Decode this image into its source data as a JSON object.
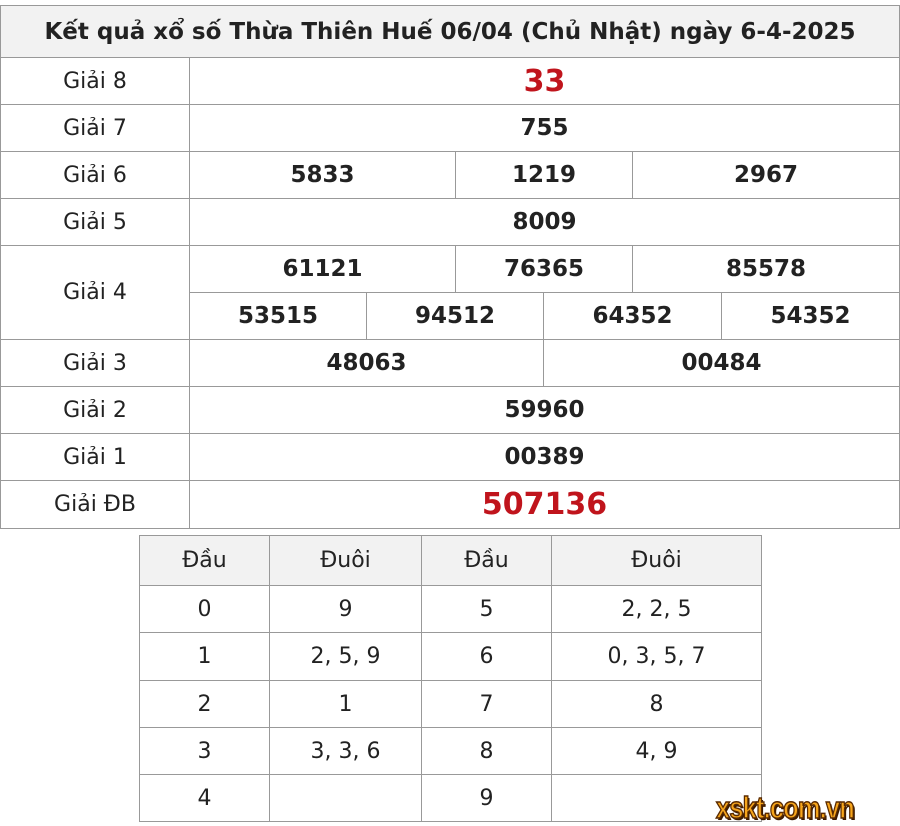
{
  "title": "Kết quả xổ số Thừa Thiên Huế 06/04 (Chủ Nhật) ngày 6-4-2025",
  "prizes": {
    "g8": {
      "label": "Giải 8",
      "numbers": [
        "33"
      ]
    },
    "g7": {
      "label": "Giải 7",
      "numbers": [
        "755"
      ]
    },
    "g6": {
      "label": "Giải 6",
      "numbers": [
        "5833",
        "1219",
        "2967"
      ]
    },
    "g5": {
      "label": "Giải 5",
      "numbers": [
        "8009"
      ]
    },
    "g4": {
      "label": "Giải 4",
      "numbers": [
        "61121",
        "76365",
        "85578",
        "53515",
        "94512",
        "64352",
        "54352"
      ]
    },
    "g3": {
      "label": "Giải 3",
      "numbers": [
        "48063",
        "00484"
      ]
    },
    "g2": {
      "label": "Giải 2",
      "numbers": [
        "59960"
      ]
    },
    "g1": {
      "label": "Giải 1",
      "numbers": [
        "00389"
      ]
    },
    "db": {
      "label": "Giải ĐB",
      "numbers": [
        "507136"
      ]
    }
  },
  "loto": {
    "headers": [
      "Đầu",
      "Đuôi",
      "Đầu",
      "Đuôi"
    ],
    "rows": [
      [
        "0",
        "9",
        "5",
        "2, 2, 5"
      ],
      [
        "1",
        "2, 5, 9",
        "6",
        "0, 3, 5, 7"
      ],
      [
        "2",
        "1",
        "7",
        "8"
      ],
      [
        "3",
        "3, 3, 6",
        "8",
        "4, 9"
      ],
      [
        "4",
        "",
        "9",
        ""
      ]
    ]
  },
  "highlight_color": "#c0141c",
  "watermark": "xskt.com.vn"
}
